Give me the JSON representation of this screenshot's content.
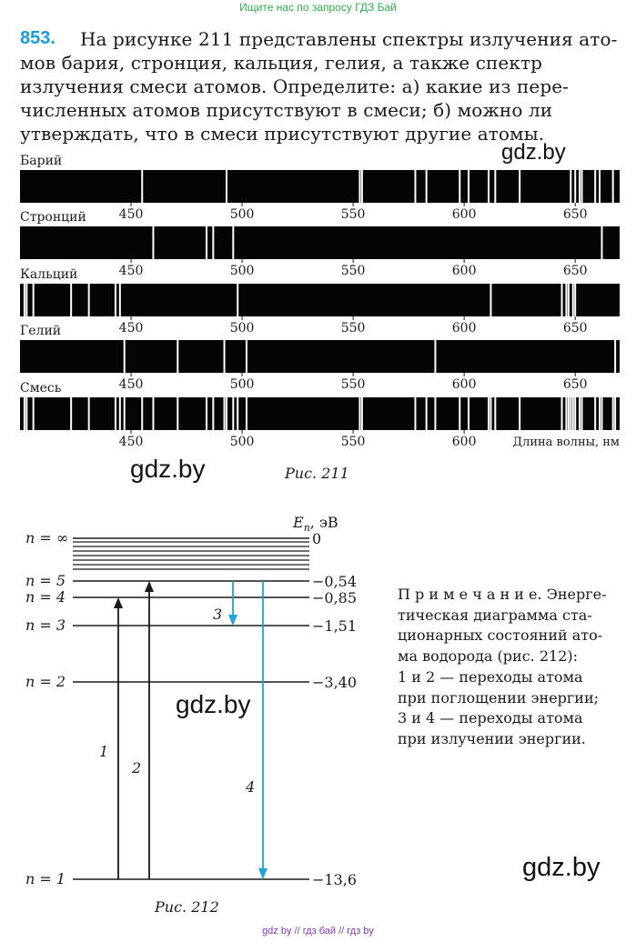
{
  "top_banner": "Ищите нас по запросу ГДЗ Бай",
  "problem": {
    "number": "853.",
    "lines": [
      "На рисунке 211 представлены спектры излучения ато-",
      "мов бария, стронция, кальция, гелия, а также спектр",
      "излучения смеси атомов. Определите: а) какие из пере-",
      "численных атомов присутствуют в смеси; б) можно ли",
      "утверждать, что в смеси присутствуют другие атомы."
    ]
  },
  "watermarks": [
    "gdz.by",
    "gdz.by",
    "gdz.by",
    "gdz.by"
  ],
  "spectra": {
    "ticks": [
      "450",
      "500",
      "550",
      "600",
      "650"
    ],
    "last_ticks": [
      "450",
      "500",
      "550",
      "600"
    ],
    "axis_label": "Длина волны, нм",
    "range_nm": [
      400,
      670
    ],
    "rows": [
      {
        "label": "Барий",
        "lines_nm": [
          455,
          493,
          553,
          554,
          578,
          583,
          598,
          602,
          611,
          614,
          625,
          648,
          650,
          652,
          653,
          659,
          661,
          667
        ]
      },
      {
        "label": "Стронций",
        "lines_nm": [
          460,
          484,
          487,
          496,
          662
        ]
      },
      {
        "label": "Кальций",
        "lines_nm": [
          402,
          403,
          406,
          423,
          431,
          443,
          445,
          498,
          612,
          644,
          646,
          647,
          649,
          650
        ]
      },
      {
        "label": "Гелий",
        "lines_nm": [
          447,
          471,
          492,
          502,
          587,
          668
        ]
      },
      {
        "label": "Смесь",
        "lines_nm": [
          402,
          403,
          406,
          423,
          431,
          443,
          445,
          447,
          455,
          460,
          471,
          484,
          487,
          492,
          493,
          496,
          498,
          502,
          553,
          554,
          578,
          583,
          587,
          598,
          602,
          611,
          612,
          614,
          625,
          644,
          646,
          647,
          648,
          649,
          650,
          652,
          653,
          659,
          661,
          662,
          667,
          668
        ]
      }
    ],
    "caption": "Рис. 211"
  },
  "energy_diagram": {
    "unit_label_main": "E",
    "unit_label_sub": "n",
    "unit_label_rest": ", эВ",
    "levels": [
      {
        "label": "n = ∞",
        "value": "0"
      },
      {
        "label": "n = 5",
        "value": "−0,54"
      },
      {
        "label": "n = 4",
        "value": "−0,85"
      },
      {
        "label": "n = 3",
        "value": "−1,51"
      },
      {
        "label": "n = 2",
        "value": "−3,40"
      },
      {
        "label": "n = 1",
        "value": "−13,6"
      }
    ],
    "transitions": [
      {
        "label": "1",
        "from": 1,
        "to": 4,
        "color": "#1a1a1a"
      },
      {
        "label": "2",
        "from": 1,
        "to": 5,
        "color": "#1a1a1a"
      },
      {
        "label": "3",
        "from": 5,
        "to": 3,
        "color": "#1ea3dc"
      },
      {
        "label": "4",
        "from": 5,
        "to": 1,
        "color": "#1ea3dc"
      }
    ],
    "caption": "Рис. 212"
  },
  "note": {
    "lines": [
      "П р и м е ч а н и е.  Энерге-",
      "тическая  диаграмма  ста-",
      "ционарных  состояний  ато-",
      "ма  водорода  (рис.  212):",
      "1  и  2 — переходы  атома",
      "при поглощении энергии;",
      "3  и  4 — переходы  атома",
      "при излучении энергии."
    ]
  },
  "bottom_banner": "gdz by  //  гдз бай  //  гдз by"
}
